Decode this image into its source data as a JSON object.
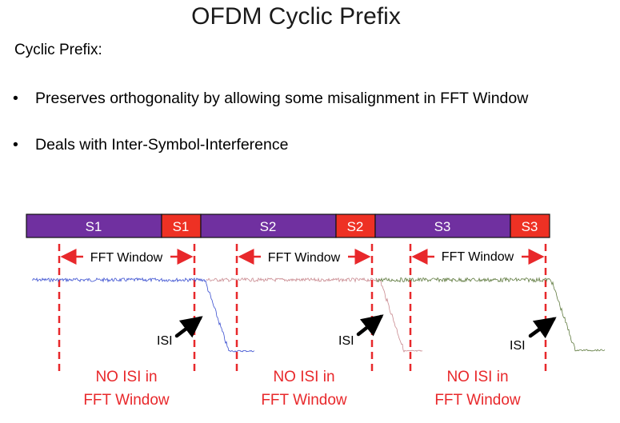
{
  "slide": {
    "title": "OFDM Cyclic Prefix",
    "subtitle": "Cyclic Prefix:",
    "bullets": [
      {
        "marker": "•",
        "text": "Preserves orthogonality by allowing some misalignment in FFT Window"
      },
      {
        "marker": "•",
        "text": "Deals with Inter-Symbol-Interference"
      }
    ]
  },
  "diagram": {
    "colors": {
      "symbol": "#7030a0",
      "prefix": "#ee3124",
      "dashed": "#e8282b",
      "arrow": "#000000"
    },
    "segments": [
      {
        "label": "S1",
        "kind": "symbol"
      },
      {
        "label": "S1",
        "kind": "prefix"
      },
      {
        "label": "S2",
        "kind": "symbol"
      },
      {
        "label": "S2",
        "kind": "prefix"
      },
      {
        "label": "S3",
        "kind": "symbol"
      },
      {
        "label": "S3",
        "kind": "prefix"
      }
    ],
    "fft_window_label": "FFT Window",
    "windows": [
      {
        "isi_label": "ISI",
        "no_isi_line1": "NO ISI in",
        "no_isi_line2": "FFT Window",
        "signal_color": "#3a4fd0"
      },
      {
        "isi_label": "ISI",
        "no_isi_line1": "NO ISI in",
        "no_isi_line2": "FFT Window",
        "signal_color": "#c98a90"
      },
      {
        "isi_label": "ISI",
        "no_isi_line1": "NO ISI in",
        "no_isi_line2": "FFT Window",
        "signal_color": "#5f7a3f"
      }
    ]
  }
}
